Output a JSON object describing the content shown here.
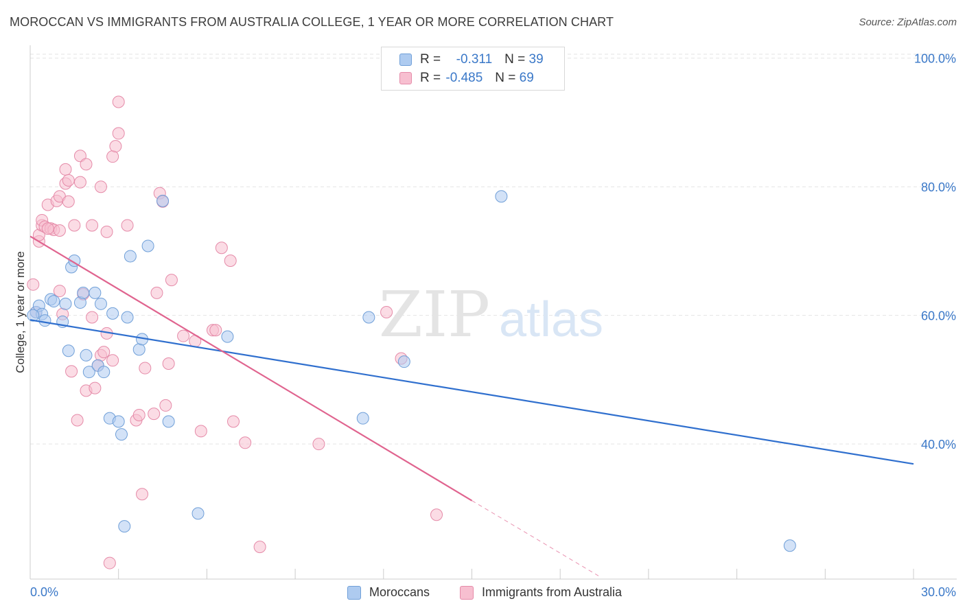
{
  "header": {
    "title": "MOROCCAN VS IMMIGRANTS FROM AUSTRALIA COLLEGE, 1 YEAR OR MORE CORRELATION CHART",
    "source": "Source: ZipAtlas.com"
  },
  "watermark": {
    "zip": "ZIP",
    "atlas": "atlas"
  },
  "legend": {
    "rows": [
      {
        "r_label": "R =",
        "r_value": "-0.311",
        "n_label": "N =",
        "n_value": "39"
      },
      {
        "r_label": "R =",
        "r_value": "-0.485",
        "n_label": "N =",
        "n_value": "69"
      }
    ]
  },
  "colors": {
    "blue_fill": "#aecbf0",
    "blue_stroke": "#6f9fd8",
    "blue_line": "#2f6fce",
    "pink_fill": "#f7bfd0",
    "pink_stroke": "#e58aa8",
    "pink_line": "#e0648f",
    "axis_text": "#3a78c8",
    "grid": "#e3e3e3"
  },
  "chart_data": {
    "type": "scatter",
    "title": "MOROCCAN VS IMMIGRANTS FROM AUSTRALIA COLLEGE, 1 YEAR OR MORE CORRELATION CHART",
    "xlabel": "",
    "ylabel": "College, 1 year or more",
    "xlim": [
      0,
      30
    ],
    "ylim": [
      19,
      102
    ],
    "x_tick_labels": [
      "0.0%",
      "30.0%"
    ],
    "y_ticks": [
      40,
      60,
      80,
      100
    ],
    "y_tick_labels": [
      "40.0%",
      "60.0%",
      "80.0%",
      "100.0%"
    ],
    "series": [
      {
        "name": "Moroccans",
        "color": "blue",
        "r": -0.311,
        "n": 39,
        "trend": {
          "x0": 0,
          "y0": 59.3,
          "x1": 30,
          "y1": 36.9
        },
        "points": [
          [
            0.2,
            60.5
          ],
          [
            0.3,
            61.5
          ],
          [
            0.4,
            60.2
          ],
          [
            0.5,
            59.2
          ],
          [
            0.7,
            62.5
          ],
          [
            0.8,
            62.2
          ],
          [
            1.1,
            59.0
          ],
          [
            1.3,
            54.5
          ],
          [
            1.4,
            67.5
          ],
          [
            1.5,
            68.5
          ],
          [
            1.7,
            62.0
          ],
          [
            1.8,
            63.5
          ],
          [
            1.9,
            53.8
          ],
          [
            2.0,
            51.2
          ],
          [
            2.2,
            63.5
          ],
          [
            2.3,
            52.2
          ],
          [
            2.4,
            61.8
          ],
          [
            2.5,
            51.2
          ],
          [
            2.7,
            44.0
          ],
          [
            2.8,
            60.3
          ],
          [
            3.0,
            43.5
          ],
          [
            3.1,
            41.5
          ],
          [
            3.2,
            27.2
          ],
          [
            3.3,
            59.7
          ],
          [
            3.4,
            69.2
          ],
          [
            3.7,
            54.7
          ],
          [
            3.8,
            56.3
          ],
          [
            4.0,
            70.8
          ],
          [
            4.5,
            77.8
          ],
          [
            4.7,
            43.5
          ],
          [
            5.7,
            29.2
          ],
          [
            6.7,
            56.7
          ],
          [
            11.5,
            59.7
          ],
          [
            11.3,
            44.0
          ],
          [
            12.7,
            52.8
          ],
          [
            16.0,
            78.5
          ],
          [
            25.8,
            24.2
          ],
          [
            0.1,
            60.0
          ],
          [
            1.2,
            61.8
          ]
        ]
      },
      {
        "name": "Immigrants from Australia",
        "color": "pink",
        "r": -0.485,
        "n": 69,
        "trend": {
          "x0": 0,
          "y0": 72.3,
          "x1": 15.0,
          "y1": 31.2
        },
        "trend_dashed_to": {
          "x": 19.3,
          "y": 19.5
        },
        "points": [
          [
            0.1,
            64.8
          ],
          [
            0.3,
            71.5
          ],
          [
            0.3,
            72.5
          ],
          [
            0.4,
            74.0
          ],
          [
            0.4,
            74.8
          ],
          [
            0.5,
            73.8
          ],
          [
            0.6,
            77.2
          ],
          [
            0.7,
            73.5
          ],
          [
            0.8,
            73.3
          ],
          [
            0.9,
            77.8
          ],
          [
            1.0,
            78.5
          ],
          [
            1.0,
            73.2
          ],
          [
            1.0,
            63.8
          ],
          [
            1.1,
            60.2
          ],
          [
            1.2,
            82.7
          ],
          [
            1.2,
            80.5
          ],
          [
            1.3,
            81.0
          ],
          [
            1.3,
            77.7
          ],
          [
            1.4,
            51.3
          ],
          [
            1.5,
            74.0
          ],
          [
            1.6,
            43.7
          ],
          [
            1.7,
            84.8
          ],
          [
            1.7,
            80.7
          ],
          [
            1.8,
            63.3
          ],
          [
            1.9,
            83.5
          ],
          [
            1.9,
            48.3
          ],
          [
            2.1,
            74.0
          ],
          [
            2.1,
            59.7
          ],
          [
            2.2,
            48.7
          ],
          [
            2.3,
            52.2
          ],
          [
            2.4,
            53.8
          ],
          [
            2.4,
            80.0
          ],
          [
            2.5,
            54.3
          ],
          [
            2.6,
            73.0
          ],
          [
            2.6,
            57.2
          ],
          [
            2.7,
            21.5
          ],
          [
            2.8,
            53.0
          ],
          [
            2.8,
            84.7
          ],
          [
            2.9,
            86.3
          ],
          [
            3.0,
            93.2
          ],
          [
            3.0,
            88.3
          ],
          [
            3.3,
            74.0
          ],
          [
            3.6,
            43.7
          ],
          [
            3.7,
            44.5
          ],
          [
            3.8,
            32.2
          ],
          [
            3.9,
            51.8
          ],
          [
            4.2,
            44.7
          ],
          [
            4.3,
            63.5
          ],
          [
            4.4,
            79.0
          ],
          [
            4.5,
            77.7
          ],
          [
            4.6,
            46.0
          ],
          [
            4.7,
            52.5
          ],
          [
            4.8,
            65.5
          ],
          [
            5.2,
            56.8
          ],
          [
            5.6,
            56.0
          ],
          [
            5.8,
            42.0
          ],
          [
            6.2,
            57.7
          ],
          [
            6.3,
            57.7
          ],
          [
            6.5,
            70.5
          ],
          [
            6.8,
            68.5
          ],
          [
            6.9,
            43.5
          ],
          [
            7.3,
            40.2
          ],
          [
            7.8,
            24.0
          ],
          [
            9.8,
            40.0
          ],
          [
            12.1,
            60.5
          ],
          [
            12.6,
            53.3
          ],
          [
            13.8,
            29.0
          ],
          [
            0.2,
            60.5
          ],
          [
            0.6,
            73.5
          ]
        ]
      }
    ]
  },
  "bottom_legend": {
    "blue_label": "Moroccans",
    "pink_label": "Immigrants from Australia"
  }
}
